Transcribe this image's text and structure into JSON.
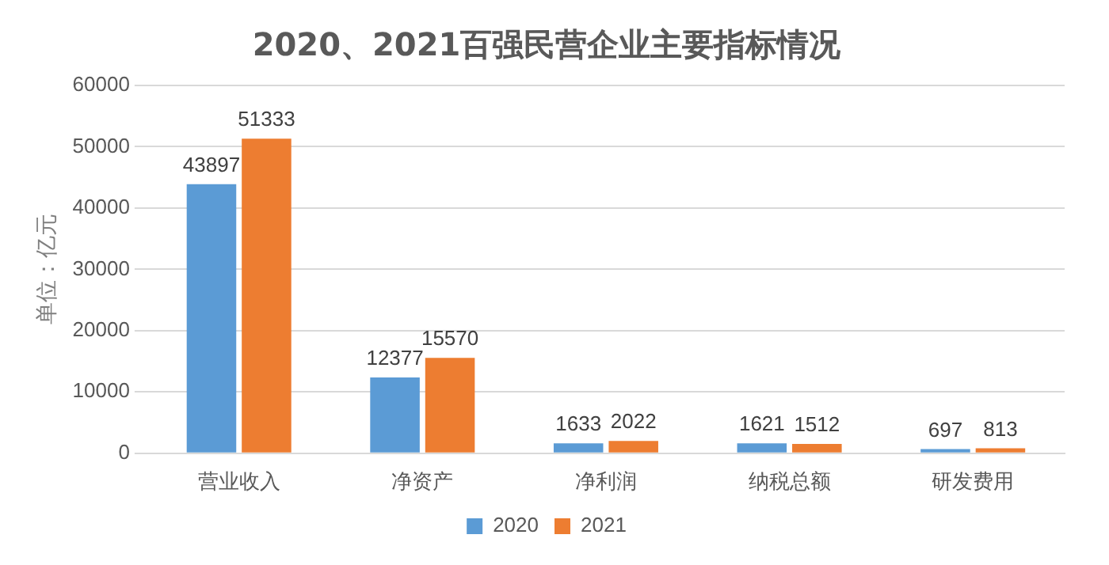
{
  "chart_data": {
    "type": "bar",
    "title": "2020、2021百强民营企业主要指标情况",
    "ylabel": "单位：亿元",
    "categories": [
      "营业收入",
      "净资产",
      "净利润",
      "纳税总额",
      "研发费用"
    ],
    "series": [
      {
        "name": "2020",
        "color": "#5b9bd5",
        "values": [
          43897,
          12377,
          1633,
          1621,
          697
        ]
      },
      {
        "name": "2021",
        "color": "#ed7d31",
        "values": [
          51333,
          15570,
          2022,
          1512,
          813
        ]
      }
    ],
    "ylim": [
      0,
      60000
    ],
    "yticks": [
      0,
      10000,
      20000,
      30000,
      40000,
      50000,
      60000
    ],
    "grid": "y",
    "legend": "bottom",
    "data_labels": true
  }
}
